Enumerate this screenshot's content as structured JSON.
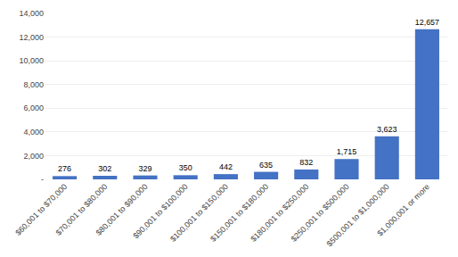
{
  "chart_data": {
    "type": "bar",
    "categories": [
      "$60,001 to $70,000",
      "$70,001 to $80,000",
      "$80,001 to $90,000",
      "$90,001 to $100,000",
      "$100,001 to $150,000",
      "$150,001 to $180,000",
      "$180,001 to $250,000",
      "$250,001 to $500,000",
      "$500,001 to $1,000,000",
      "$1,000,001 or more"
    ],
    "values": [
      276,
      302,
      329,
      350,
      442,
      635,
      832,
      1715,
      3623,
      12657
    ],
    "value_labels": [
      "276",
      "302",
      "329",
      "350",
      "442",
      "635",
      "832",
      "1,715",
      "3,623",
      "12,657"
    ],
    "data_labels": true,
    "color": "#4472C4",
    "ylim": [
      0,
      14000
    ],
    "yticks": [
      {
        "value": 0,
        "label": "-"
      },
      {
        "value": 2000,
        "label": "2,000"
      },
      {
        "value": 4000,
        "label": "4,000"
      },
      {
        "value": 6000,
        "label": "6,000"
      },
      {
        "value": 8000,
        "label": "8,000"
      },
      {
        "value": 10000,
        "label": "10,000"
      },
      {
        "value": 12000,
        "label": "12,000"
      },
      {
        "value": 14000,
        "label": "14,000"
      }
    ],
    "grid": true
  }
}
